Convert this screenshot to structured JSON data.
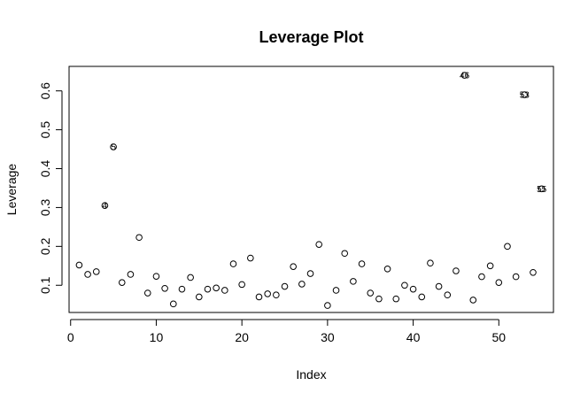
{
  "chart_data": {
    "type": "scatter",
    "title": "Leverage Plot",
    "xlabel": "Index",
    "ylabel": "Leverage",
    "xlim": [
      -0.18,
      56.38
    ],
    "ylim": [
      0.03,
      0.663
    ],
    "xticks": [
      0,
      10,
      20,
      30,
      40,
      50
    ],
    "yticks": [
      0.1,
      0.2,
      0.3,
      0.4,
      0.5,
      0.6
    ],
    "xtick_labels": [
      "0",
      "10",
      "20",
      "30",
      "40",
      "50"
    ],
    "ytick_labels": [
      "0.1",
      "0.2",
      "0.3",
      "0.4",
      "0.5",
      "0.6"
    ],
    "grid": false,
    "legend": "none",
    "x": [
      1,
      2,
      3,
      4,
      5,
      6,
      7,
      8,
      9,
      10,
      11,
      12,
      13,
      14,
      15,
      16,
      17,
      18,
      19,
      20,
      21,
      22,
      23,
      24,
      25,
      26,
      27,
      28,
      29,
      30,
      31,
      32,
      33,
      34,
      35,
      36,
      37,
      38,
      39,
      40,
      41,
      42,
      43,
      44,
      45,
      46,
      47,
      48,
      49,
      50,
      51,
      52,
      53,
      54,
      55
    ],
    "y": [
      0.152,
      0.128,
      0.135,
      0.305,
      0.456,
      0.107,
      0.128,
      0.223,
      0.08,
      0.123,
      0.092,
      0.052,
      0.09,
      0.12,
      0.07,
      0.09,
      0.093,
      0.087,
      0.155,
      0.102,
      0.17,
      0.07,
      0.078,
      0.075,
      0.097,
      0.148,
      0.103,
      0.13,
      0.205,
      0.048,
      0.087,
      0.182,
      0.11,
      0.155,
      0.08,
      0.065,
      0.142,
      0.065,
      0.1,
      0.09,
      0.07,
      0.157,
      0.097,
      0.075,
      0.137,
      0.64,
      0.062,
      0.122,
      0.15,
      0.107,
      0.2,
      0.122,
      0.59,
      0.133,
      0.348
    ],
    "point_labels": [
      {
        "x": 4,
        "y": 0.305,
        "text": "4"
      },
      {
        "x": 5,
        "y": 0.456,
        "text": "5"
      },
      {
        "x": 46,
        "y": 0.64,
        "text": "46"
      },
      {
        "x": 53,
        "y": 0.59,
        "text": "53"
      },
      {
        "x": 55,
        "y": 0.348,
        "text": "55"
      }
    ]
  }
}
